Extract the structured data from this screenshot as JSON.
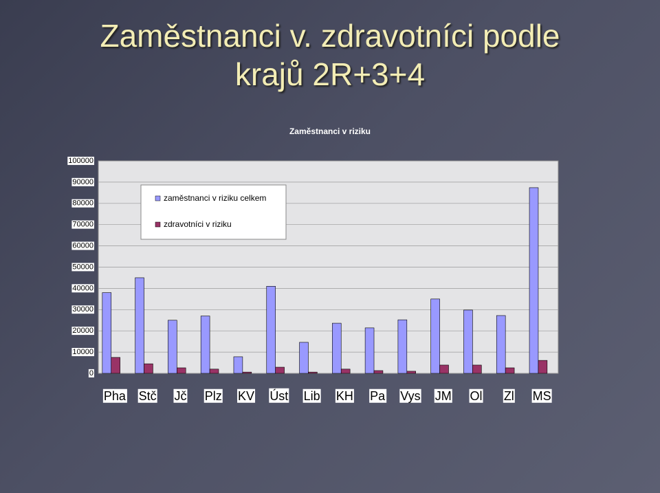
{
  "slide": {
    "title_lines": [
      "Zaměstnanci v. zdravotníci podle",
      "krajů 2R+3+4"
    ]
  },
  "chart_data": {
    "type": "bar",
    "title": "Zaměstnanci v riziku",
    "categories": [
      "Pha",
      "Stč",
      "Jč",
      "Plz",
      "KV",
      "Úst",
      "Lib",
      "KH",
      "Pa",
      "Vys",
      "JM",
      "Ol",
      "Zl",
      "MS"
    ],
    "series": [
      {
        "name": "zaměstnanci v riziku celkem",
        "color": "#9999ff",
        "values": [
          38000,
          45000,
          25000,
          27000,
          7800,
          41000,
          14600,
          23600,
          21400,
          25200,
          35000,
          29800,
          27200,
          87400
        ]
      },
      {
        "name": "zdravotníci v riziku",
        "color": "#993366",
        "values": [
          7500,
          4500,
          2600,
          2000,
          600,
          2900,
          600,
          2000,
          1300,
          1000,
          3900,
          3900,
          2600,
          6100
        ]
      }
    ],
    "ylim": [
      0,
      100000
    ],
    "yticks": [
      0,
      10000,
      20000,
      30000,
      40000,
      50000,
      60000,
      70000,
      80000,
      90000,
      100000
    ],
    "grid": true
  }
}
